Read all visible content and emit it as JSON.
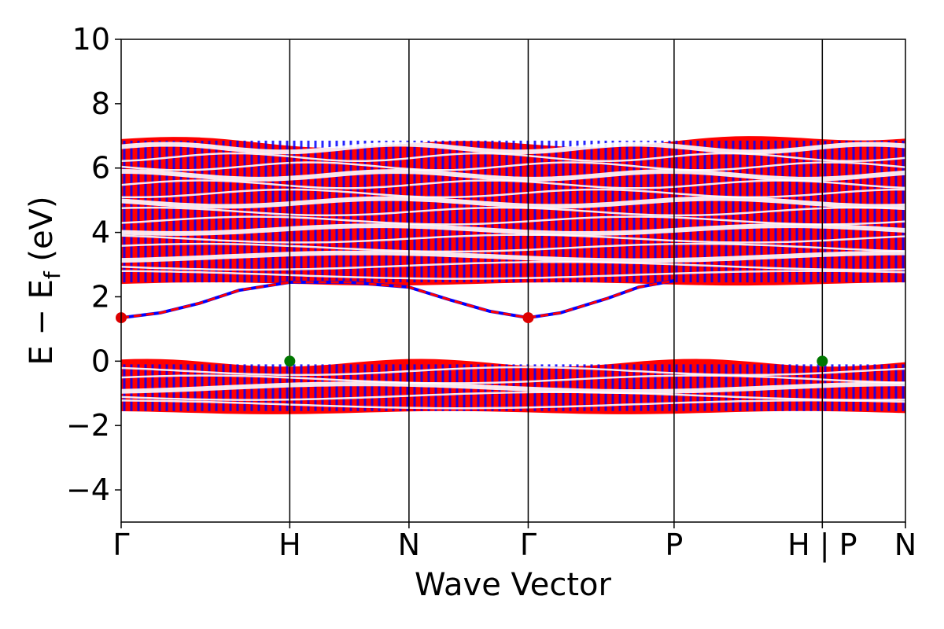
{
  "chart_data": {
    "type": "line",
    "xlabel": "Wave Vector",
    "ylabel_main": "E − E",
    "ylabel_sub": "f",
    "ylabel_unit": " (eV)",
    "ylim": [
      -5,
      10
    ],
    "yticks": [
      {
        "value": 10,
        "label": "10"
      },
      {
        "value": 8,
        "label": "8"
      },
      {
        "value": 6,
        "label": "6"
      },
      {
        "value": 4,
        "label": "4"
      },
      {
        "value": 2,
        "label": "2"
      },
      {
        "value": 0,
        "label": "0"
      },
      {
        "value": -2,
        "label": "−2"
      },
      {
        "value": -4,
        "label": "−4"
      }
    ],
    "xlim": [
      0,
      1
    ],
    "kpoints": [
      {
        "x": 0.0,
        "label": "Γ"
      },
      {
        "x": 0.215,
        "label": "H"
      },
      {
        "x": 0.367,
        "label": "N"
      },
      {
        "x": 0.519,
        "label": "Γ"
      },
      {
        "x": 0.705,
        "label": "P"
      },
      {
        "x": 0.894,
        "label": "H | P"
      },
      {
        "x": 1.0,
        "label": "N"
      }
    ],
    "spin_colors": {
      "up": "#0000ff",
      "down": "#ff0000"
    },
    "band_groups": [
      {
        "name": "conduction",
        "min_energy": 2.4,
        "max_energy": 6.9
      },
      {
        "name": "valence",
        "min_energy": -1.6,
        "max_energy": -0.05
      }
    ],
    "dispersive_band": {
      "x": [
        0.0,
        0.05,
        0.1,
        0.15,
        0.215,
        0.29,
        0.367,
        0.42,
        0.47,
        0.519,
        0.56,
        0.62,
        0.66,
        0.705
      ],
      "y": [
        1.35,
        1.5,
        1.8,
        2.2,
        2.45,
        2.45,
        2.3,
        1.9,
        1.55,
        1.35,
        1.5,
        1.95,
        2.3,
        2.5
      ]
    },
    "band_edge_markers": [
      {
        "kind": "CBM",
        "x": 0.0,
        "y": 1.35,
        "color": "#dd0000"
      },
      {
        "kind": "CBM",
        "x": 0.519,
        "y": 1.35,
        "color": "#dd0000"
      },
      {
        "kind": "VBM",
        "x": 0.215,
        "y": 0.0,
        "color": "#007700"
      },
      {
        "kind": "VBM",
        "x": 0.894,
        "y": 0.0,
        "color": "#007700"
      }
    ]
  }
}
